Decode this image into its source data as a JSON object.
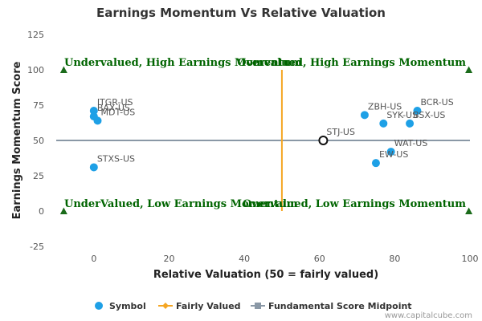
{
  "chart_data": {
    "type": "scatter",
    "title": "Earnings Momentum Vs Relative Valuation",
    "xlabel": "Relative Valuation (50 = fairly valued)",
    "ylabel": "Earnings Momentum Score",
    "xlim": [
      -10,
      100
    ],
    "ylim": [
      -25,
      125
    ],
    "x_ticks": [
      0,
      20,
      40,
      60,
      80,
      100
    ],
    "y_ticks": [
      -25,
      0,
      25,
      50,
      75,
      100,
      125
    ],
    "grid": false,
    "legend_position": "bottom",
    "series": [
      {
        "name": "Symbol",
        "color": "#1ea0e6",
        "points": [
          {
            "label": "ITGR-US",
            "x": 0,
            "y": 71
          },
          {
            "label": "BAX-US",
            "x": 0,
            "y": 67
          },
          {
            "label": "MDT-US",
            "x": 1,
            "y": 64
          },
          {
            "label": "STXS-US",
            "x": 0,
            "y": 31
          },
          {
            "label": "ZBH-US",
            "x": 72,
            "y": 68
          },
          {
            "label": "SYK-US",
            "x": 77,
            "y": 62
          },
          {
            "label": "BCR-US",
            "x": 86,
            "y": 71
          },
          {
            "label": "BSX-US",
            "x": 84,
            "y": 62
          },
          {
            "label": "WAT-US",
            "x": 79,
            "y": 42
          },
          {
            "label": "EW-US",
            "x": 75,
            "y": 34
          }
        ]
      },
      {
        "name": "Fairly Valued",
        "color": "#f5a623",
        "x": 50
      },
      {
        "name": "Fundamental Score Midpoint",
        "color": "#8a98a6",
        "y": 50
      }
    ],
    "highlight": {
      "label": "STJ-US",
      "x": 61,
      "y": 50
    },
    "quadrants": {
      "top_left": "Undervalued, High Earnings Momentum",
      "top_right": "Overvalued, High Earnings Momentum",
      "bottom_left": "UnderValued, Low Earnings Momentum",
      "bottom_right": "Overvalued, Low Earnings Momentum"
    },
    "quadrant_marker_color": "#1a6b1a"
  },
  "credit": "www.capitalcube.com"
}
